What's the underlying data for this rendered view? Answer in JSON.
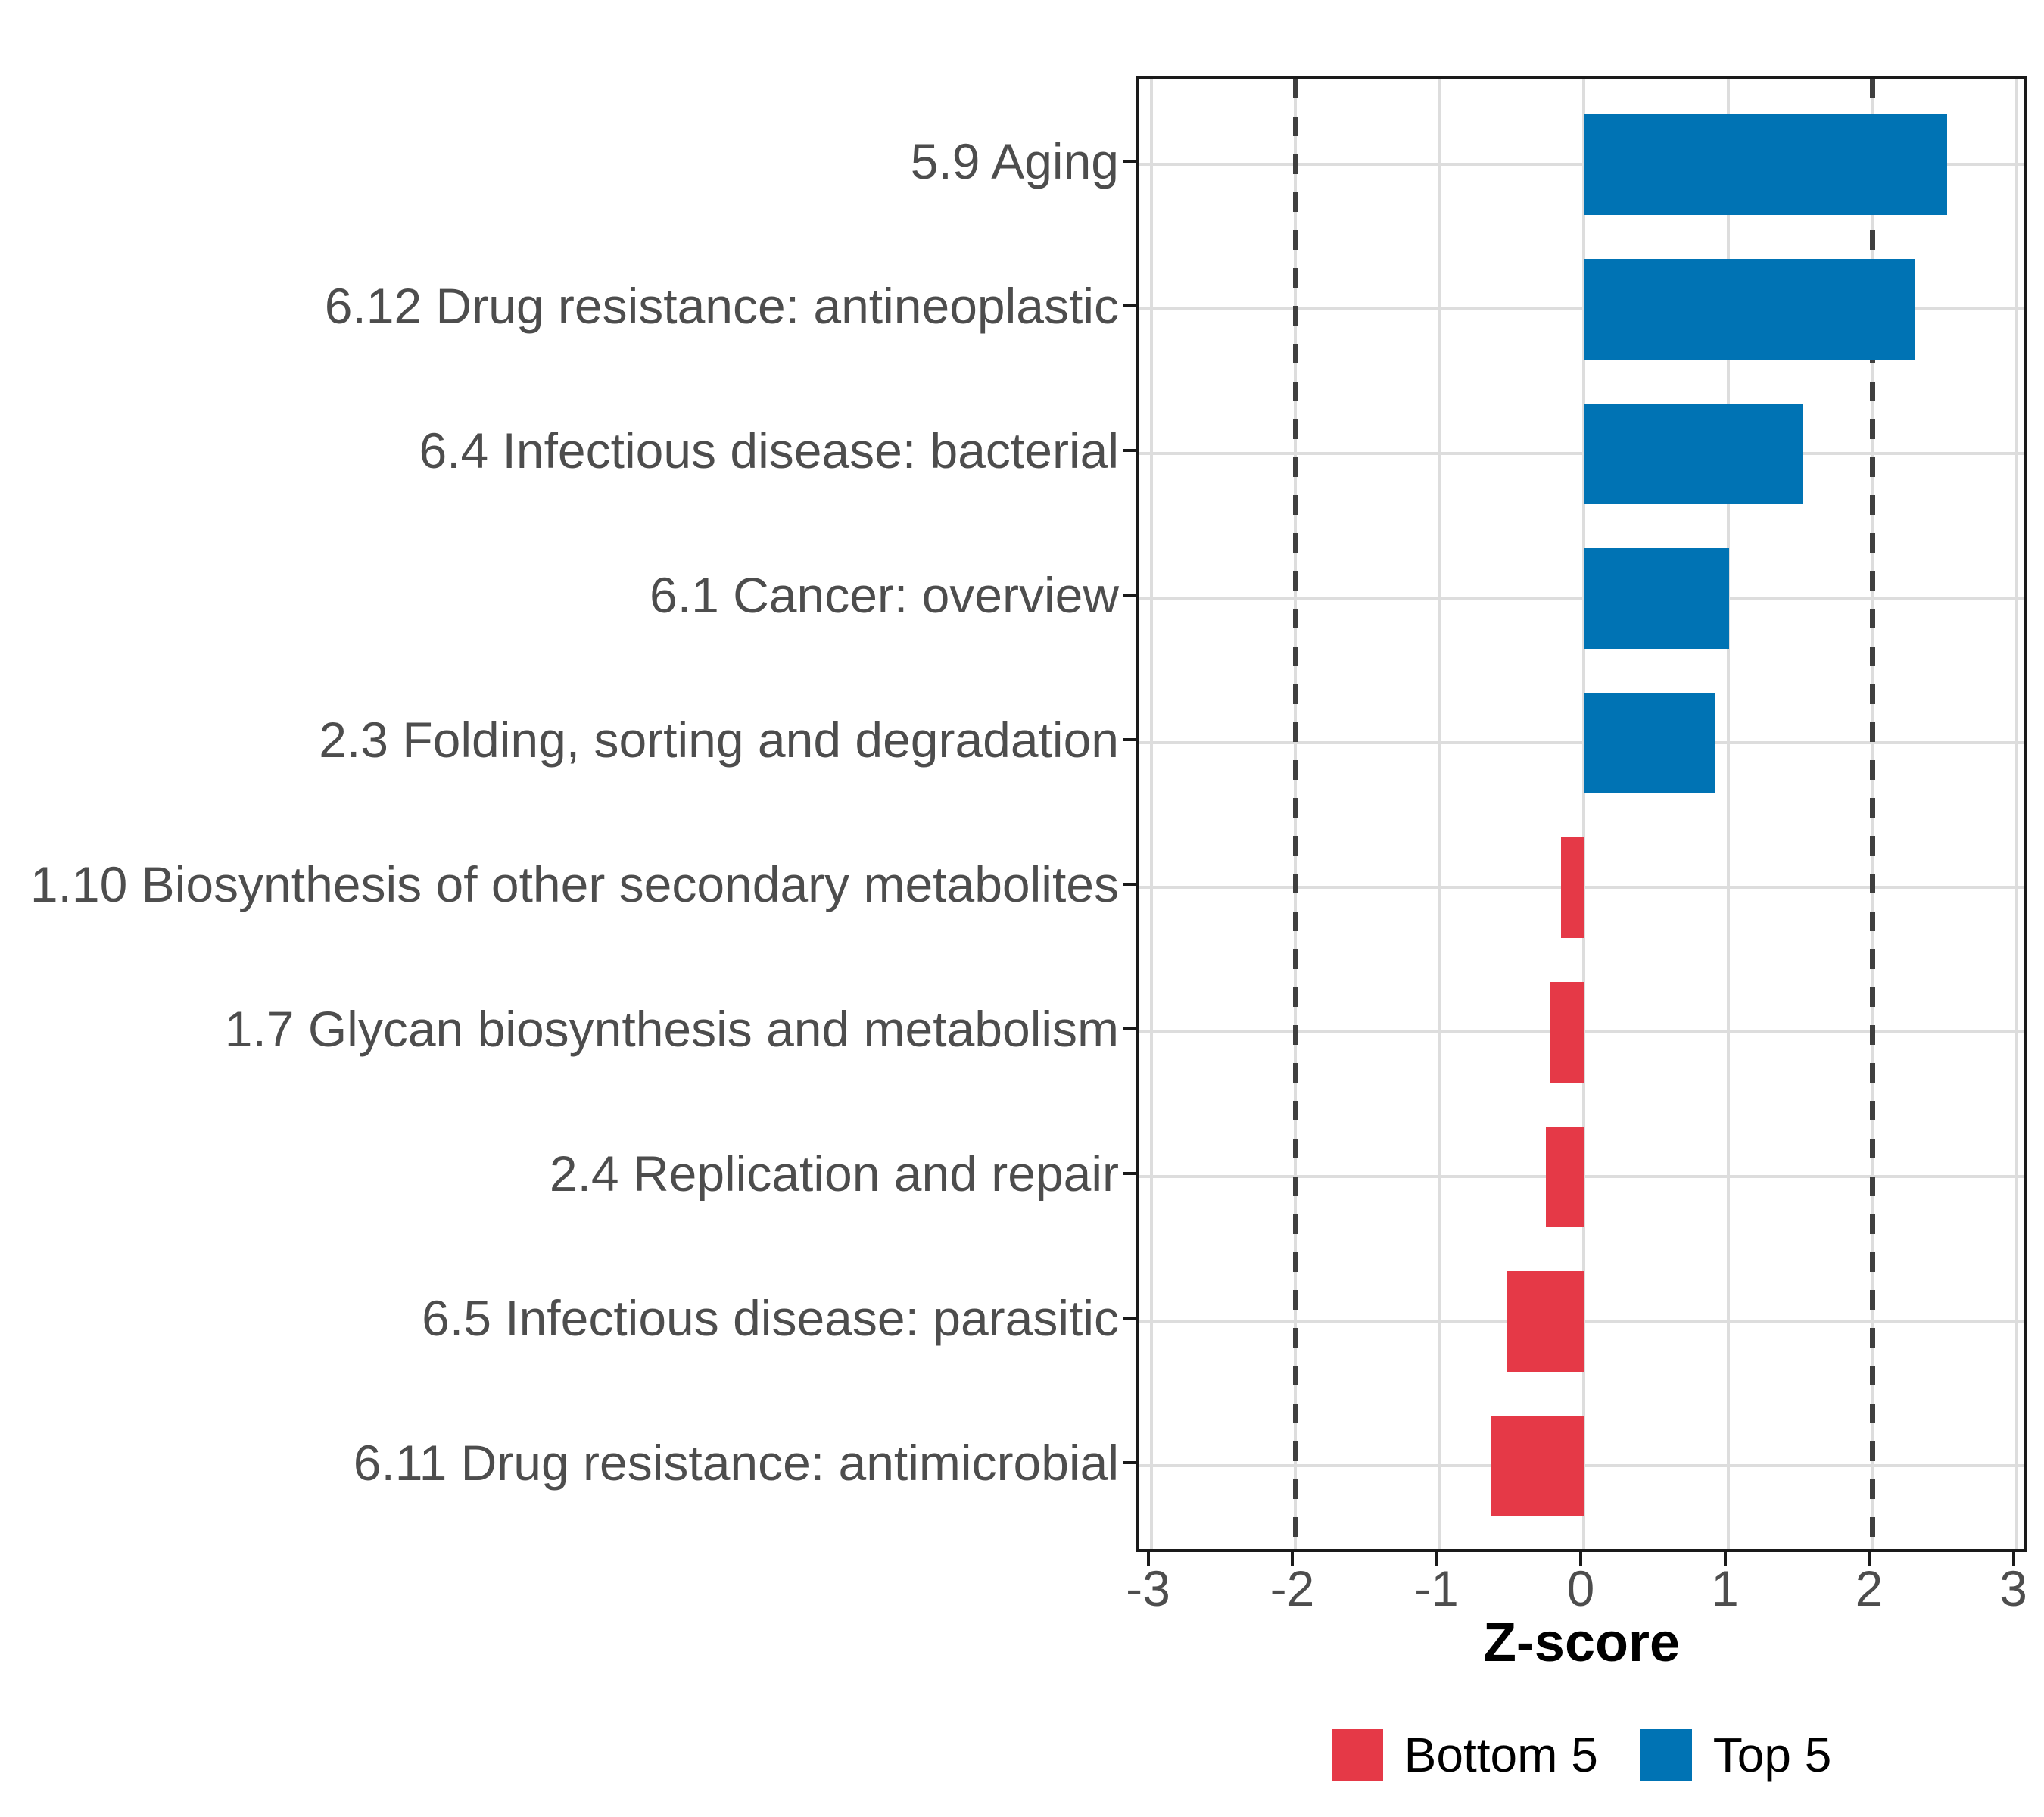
{
  "chart_data": {
    "type": "bar",
    "orientation": "horizontal",
    "title": "",
    "xlabel": "Z-score",
    "categories": [
      "5.9 Aging",
      "6.12 Drug resistance: antineoplastic",
      "6.4 Infectious disease: bacterial",
      "6.1 Cancer: overview",
      "2.3 Folding, sorting and degradation",
      "1.10 Biosynthesis of other secondary metabolites",
      "1.7 Glycan biosynthesis and metabolism",
      "2.4 Replication and repair",
      "6.5 Infectious disease: parasitic",
      "6.11 Drug resistance: antimicrobial"
    ],
    "values": [
      2.52,
      2.3,
      1.52,
      1.01,
      0.91,
      -0.16,
      -0.23,
      -0.26,
      -0.53,
      -0.64
    ],
    "groups": [
      "Top 5",
      "Top 5",
      "Top 5",
      "Top 5",
      "Top 5",
      "Bottom 5",
      "Bottom 5",
      "Bottom 5",
      "Bottom 5",
      "Bottom 5"
    ],
    "colors": {
      "Top 5": "#0073B4",
      "Bottom 5": "#E53947"
    },
    "xlim": [
      -3.08,
      3.09
    ],
    "x_ticks": [
      "-3",
      "-2",
      "-1",
      "0",
      "1",
      "2",
      "3"
    ],
    "threshold_lines": [
      -2,
      2
    ],
    "grid": true,
    "legend_position": "bottom",
    "legend": [
      {
        "label": "Bottom 5",
        "color": "#E53947"
      },
      {
        "label": "Top 5",
        "color": "#0073B4"
      }
    ]
  }
}
